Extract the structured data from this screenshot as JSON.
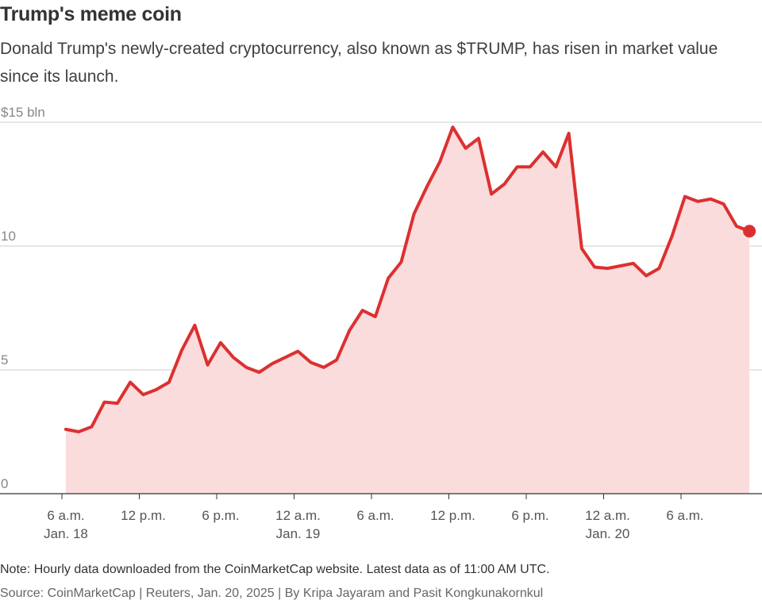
{
  "title": "Trump's meme coin",
  "subtitle": "Donald Trump's newly-created cryptocurrency, also known as $TRUMP, has risen in market value since its launch.",
  "note": "Note: Hourly data downloaded from the CoinMarketCap website. Latest data as of 11:00 AM UTC.",
  "source": "Source: CoinMarketCap | Reuters, Jan. 20, 2025 | By Kripa Jayaram and Pasit Kongkunakornkul",
  "colors": {
    "line": "#dc3030",
    "area": "#fadcdc",
    "grid": "#cccccc",
    "axis": "#333333"
  },
  "chart_data": {
    "type": "area",
    "ylabel": "",
    "ylim": [
      0,
      15
    ],
    "y_ticks": [
      {
        "value": 15,
        "label": "$15 bln"
      },
      {
        "value": 10,
        "label": "10"
      },
      {
        "value": 5,
        "label": "5"
      },
      {
        "value": 0,
        "label": "0"
      }
    ],
    "x_ticks": [
      {
        "hour": 6,
        "label": "6 a.m.",
        "sublabel": "Jan. 18"
      },
      {
        "hour": 12,
        "label": "12 p.m.",
        "sublabel": ""
      },
      {
        "hour": 18,
        "label": "6 p.m.",
        "sublabel": ""
      },
      {
        "hour": 24,
        "label": "12 a.m.",
        "sublabel": "Jan. 19"
      },
      {
        "hour": 30,
        "label": "6 a.m.",
        "sublabel": ""
      },
      {
        "hour": 36,
        "label": "12 p.m.",
        "sublabel": ""
      },
      {
        "hour": 42,
        "label": "6 p.m.",
        "sublabel": ""
      },
      {
        "hour": 48,
        "label": "12 a.m.",
        "sublabel": "Jan. 20"
      },
      {
        "hour": 54,
        "label": "6 a.m.",
        "sublabel": ""
      }
    ],
    "xlim": [
      6,
      59
    ],
    "grid": true,
    "series": [
      {
        "values": [
          [
            6.3,
            2.6
          ],
          [
            7.3,
            2.5
          ],
          [
            8.3,
            2.7
          ],
          [
            9.3,
            3.7
          ],
          [
            10.3,
            3.65
          ],
          [
            11.3,
            4.5
          ],
          [
            12.3,
            4.0
          ],
          [
            13.3,
            4.2
          ],
          [
            14.3,
            4.5
          ],
          [
            15.3,
            5.8
          ],
          [
            16.3,
            6.8
          ],
          [
            17.3,
            5.2
          ],
          [
            18.3,
            6.1
          ],
          [
            19.3,
            5.5
          ],
          [
            20.3,
            5.1
          ],
          [
            21.3,
            4.9
          ],
          [
            22.3,
            5.25
          ],
          [
            23.3,
            5.5
          ],
          [
            24.3,
            5.75
          ],
          [
            25.3,
            5.3
          ],
          [
            26.3,
            5.1
          ],
          [
            27.3,
            5.4
          ],
          [
            28.3,
            6.6
          ],
          [
            29.3,
            7.4
          ],
          [
            30.3,
            7.15
          ],
          [
            31.3,
            8.7
          ],
          [
            32.3,
            9.35
          ],
          [
            33.3,
            11.3
          ],
          [
            34.3,
            12.4
          ],
          [
            35.3,
            13.4
          ],
          [
            36.3,
            14.8
          ],
          [
            37.3,
            13.95
          ],
          [
            38.3,
            14.35
          ],
          [
            39.3,
            12.1
          ],
          [
            40.3,
            12.5
          ],
          [
            41.3,
            13.2
          ],
          [
            42.3,
            13.2
          ],
          [
            43.3,
            13.8
          ],
          [
            44.3,
            13.2
          ],
          [
            45.3,
            14.55
          ],
          [
            46.3,
            9.9
          ],
          [
            47.3,
            9.15
          ],
          [
            48.3,
            9.1
          ],
          [
            49.3,
            9.2
          ],
          [
            50.3,
            9.3
          ],
          [
            51.3,
            8.8
          ],
          [
            52.3,
            9.1
          ],
          [
            53.3,
            10.4
          ],
          [
            54.3,
            12.0
          ],
          [
            55.3,
            11.8
          ],
          [
            56.3,
            11.9
          ],
          [
            57.3,
            11.7
          ],
          [
            58.3,
            10.8
          ],
          [
            59.3,
            10.6
          ]
        ]
      }
    ]
  }
}
